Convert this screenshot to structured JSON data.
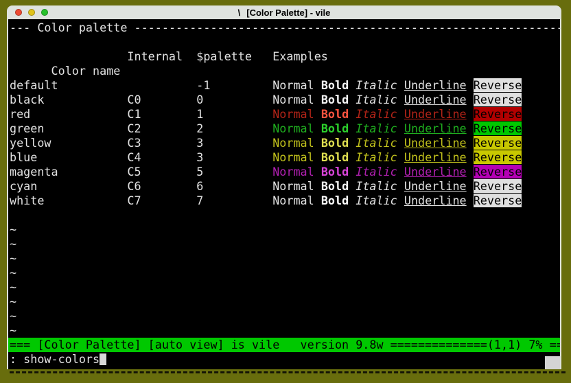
{
  "colors": {
    "desktop_bg": "#686d0d",
    "titlebar_bg": "#dfe3df",
    "titlebar_text": "#000000",
    "terminal_bg": "#000000",
    "default_fg": "#e2e2e2",
    "status_bg": "#00c800",
    "status_fg": "#000000",
    "cursor": "#d8d8d8",
    "traffic_red": "#ee4b33",
    "traffic_yellow": "#e0c41c",
    "traffic_green": "#28c22c"
  },
  "window": {
    "title_icon": "\\",
    "title": "[Color Palette] - vile"
  },
  "terminal": {
    "banner": "--- Color palette --------------------------------------------------------------",
    "columns": [
      "Color name",
      "Internal",
      "$palette",
      "Examples"
    ],
    "examples": {
      "normal": "Normal",
      "bold": "Bold",
      "italic": "Italic",
      "underline": "Underline",
      "reverse": "Reverse"
    },
    "rows": [
      {
        "name": "default",
        "internal": "",
        "value": "-1",
        "fg": "#e2e2e2",
        "bold": "#f5f5f5",
        "reverse_bg": "#e0e0e0",
        "reverse_fg": "#000000"
      },
      {
        "name": "black",
        "internal": "C0",
        "value": "0",
        "fg": "#e2e2e2",
        "bold": "#f5f5f5",
        "reverse_bg": "#e0e0e0",
        "reverse_fg": "#000000"
      },
      {
        "name": "red",
        "internal": "C1",
        "value": "1",
        "fg": "#b42418",
        "bold": "#ff5440",
        "reverse_bg": "#b20000",
        "reverse_fg": "#000000"
      },
      {
        "name": "green",
        "internal": "C2",
        "value": "2",
        "fg": "#1fae1f",
        "bold": "#2cd02c",
        "reverse_bg": "#00c800",
        "reverse_fg": "#000000"
      },
      {
        "name": "yellow",
        "internal": "C3",
        "value": "3",
        "fg": "#c2c21c",
        "bold": "#dede50",
        "reverse_bg": "#c8c800",
        "reverse_fg": "#000000"
      },
      {
        "name": "blue",
        "internal": "C4",
        "value": "3",
        "fg": "#c2c21c",
        "bold": "#dede50",
        "reverse_bg": "#c8c800",
        "reverse_fg": "#000000"
      },
      {
        "name": "magenta",
        "internal": "C5",
        "value": "5",
        "fg": "#b220b2",
        "bold": "#d844d8",
        "reverse_bg": "#b400b4",
        "reverse_fg": "#000000"
      },
      {
        "name": "cyan",
        "internal": "C6",
        "value": "6",
        "fg": "#e2e2e2",
        "bold": "#f5f5f5",
        "reverse_bg": "#e0e0e0",
        "reverse_fg": "#000000"
      },
      {
        "name": "white",
        "internal": "C7",
        "value": "7",
        "fg": "#e2e2e2",
        "bold": "#ffffff",
        "reverse_bg": "#e0e0e0",
        "reverse_fg": "#000000"
      }
    ],
    "tilde_marker": "~",
    "tilde_count": 8,
    "status_line": "=== [Color Palette] [auto view] is vile   version 9.8w ==============(1,1) 7% ==",
    "command_display": ": show-colors"
  }
}
